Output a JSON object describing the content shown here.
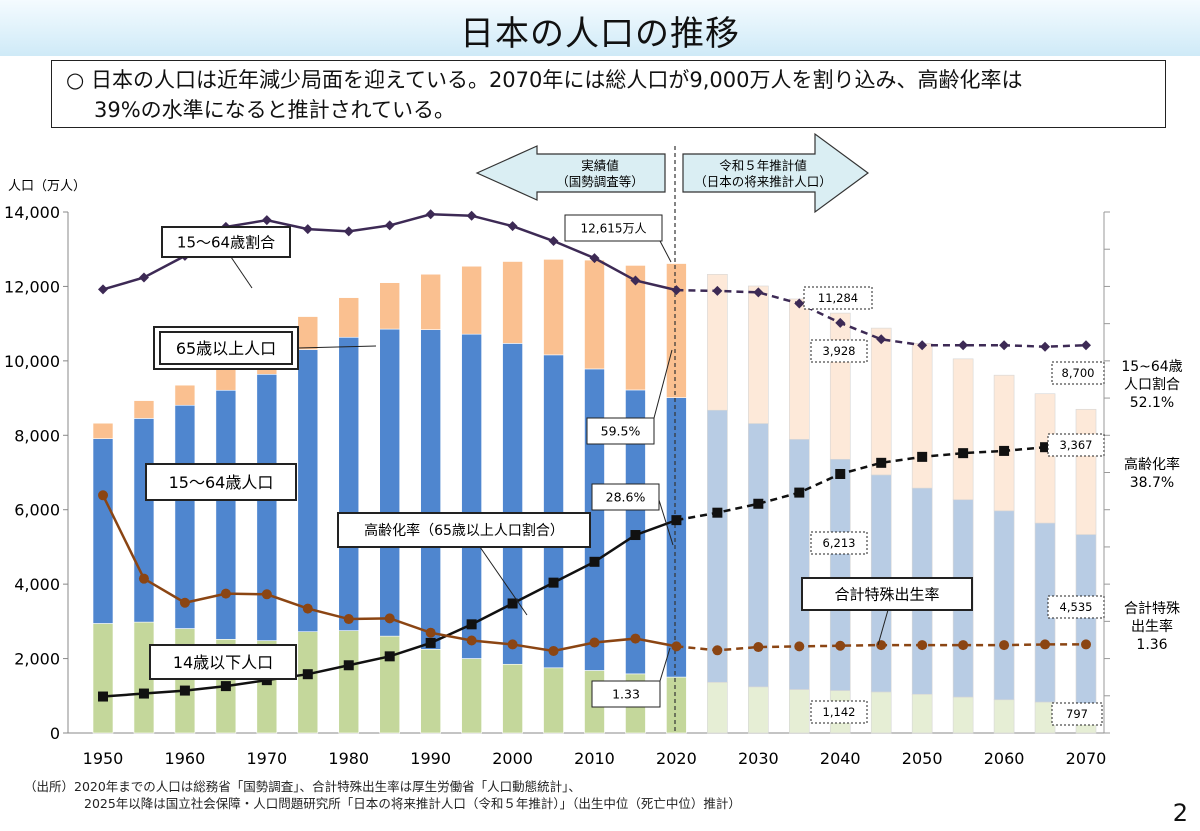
{
  "title": "日本の人口の推移",
  "summary": {
    "line1": "○ 日本の人口は近年減少局面を迎えている。2070年には総人口が9,000万人を割り込み、高齢化率は",
    "line2": "39%の水準になると推計されている。"
  },
  "arrows": {
    "actual": {
      "line1": "実績値",
      "line2": "（国勢調査等）"
    },
    "projected": {
      "line1": "令和５年推計値",
      "line2": "（日本の将来推計人口）"
    }
  },
  "source": {
    "line1": "（出所）2020年までの人口は総務省「国勢調査」、合計特殊出生率は厚生労働省「人口動態統計」、",
    "line2": "2025年以降は国立社会保障・人口問題研究所「日本の将来推計人口（令和５年推計）」（出生中位（死亡中位）推計）"
  },
  "page_number": "2",
  "colors": {
    "under15": "#c4d79b",
    "under15_proj": "#e6eed5",
    "working": "#4f86cf",
    "working_proj": "#b8cce4",
    "elderly": "#fac090",
    "elderly_proj": "#fde9d9",
    "ratio_line": "#3d2a55",
    "aging_line": "#111111",
    "tfr_line": "#8b4513"
  },
  "chart_data": {
    "type": "bar",
    "stacked": true,
    "ylabel": "人口（万人）",
    "ylim": [
      0,
      14000
    ],
    "yticks": [
      "0",
      "2,000",
      "4,000",
      "6,000",
      "8,000",
      "10,000",
      "12,000",
      "14,000"
    ],
    "x": [
      1950,
      1955,
      1960,
      1965,
      1970,
      1975,
      1980,
      1985,
      1990,
      1995,
      2000,
      2005,
      2010,
      2015,
      2020,
      2025,
      2030,
      2035,
      2040,
      2045,
      2050,
      2055,
      2060,
      2065,
      2070
    ],
    "xtick_labels": [
      "1950",
      "1960",
      "1970",
      "1980",
      "1990",
      "2000",
      "2010",
      "2020",
      "2030",
      "2040",
      "2050",
      "2060",
      "2070"
    ],
    "projection_start": 2020,
    "series": [
      {
        "name": "14歳以下人口",
        "values": [
          2943,
          2980,
          2807,
          2517,
          2482,
          2722,
          2751,
          2603,
          2249,
          2001,
          1847,
          1752,
          1680,
          1589,
          1503,
          1363,
          1240,
          1169,
          1142,
          1103,
          1041,
          966,
          893,
          832,
          797
        ]
      },
      {
        "name": "15〜64歳人口",
        "values": [
          4966,
          5473,
          6000,
          6693,
          7157,
          7581,
          7883,
          8251,
          8590,
          8716,
          8622,
          8409,
          8103,
          7629,
          7509,
          7310,
          7076,
          6722,
          6213,
          5832,
          5540,
          5302,
          5078,
          4809,
          4535
        ]
      },
      {
        "name": "65歳以上人口",
        "values": [
          416,
          479,
          540,
          624,
          739,
          887,
          1065,
          1247,
          1489,
          1826,
          2201,
          2567,
          2925,
          3347,
          3603,
          3653,
          3696,
          3773,
          3928,
          3945,
          3888,
          3786,
          3644,
          3476,
          3367
        ]
      }
    ],
    "line_series": [
      {
        "name": "15〜64歳割合",
        "values": [
          59.6,
          61.2,
          64.1,
          68.0,
          68.9,
          67.7,
          67.4,
          68.2,
          69.7,
          69.5,
          68.1,
          66.1,
          63.8,
          60.8,
          59.5,
          59.4,
          59.2,
          57.7,
          55.1,
          52.9,
          52.1,
          52.1,
          52.1,
          51.9,
          52.1
        ]
      },
      {
        "name": "高齢化率（65歳以上人口割合）",
        "values": [
          4.9,
          5.3,
          5.7,
          6.3,
          7.1,
          7.9,
          9.1,
          10.3,
          12.1,
          14.6,
          17.4,
          20.2,
          23.0,
          26.6,
          28.6,
          29.6,
          30.8,
          32.3,
          34.8,
          36.3,
          37.1,
          37.6,
          37.9,
          38.4,
          38.7
        ]
      },
      {
        "name": "合計特殊出生率",
        "values": [
          3.65,
          2.37,
          2.0,
          2.14,
          2.13,
          1.91,
          1.75,
          1.76,
          1.54,
          1.42,
          1.36,
          1.26,
          1.39,
          1.45,
          1.33,
          1.27,
          1.32,
          1.33,
          1.34,
          1.35,
          1.35,
          1.35,
          1.35,
          1.36,
          1.36
        ]
      }
    ],
    "labels": {
      "ratio_box": "15〜64歳割合",
      "elderly_box": "65歳以上人口",
      "working_box": "15〜64歳人口",
      "under15_box": "14歳以下人口",
      "aging_box": "高齢化率（65歳以上人口割合）",
      "tfr_box": "合計特殊出生率",
      "total_2020": "12,615万人",
      "ratio_2020": "59.5%",
      "aging_2020": "28.6%",
      "tfr_2020": "1.33",
      "total_2040": "11,284",
      "elderly_2040": "3,928",
      "working_2040": "6,213",
      "under15_2040": "1,142",
      "total_2070": "8,700",
      "elderly_2070": "3,367",
      "working_2070": "4,535",
      "under15_2070": "797",
      "right_ratio": [
        "15~64歳",
        "人口割合",
        "52.1%"
      ],
      "right_aging": [
        "高齢化率",
        "38.7%"
      ],
      "right_tfr": [
        "合計特殊",
        "出生率",
        "1.36"
      ]
    }
  }
}
